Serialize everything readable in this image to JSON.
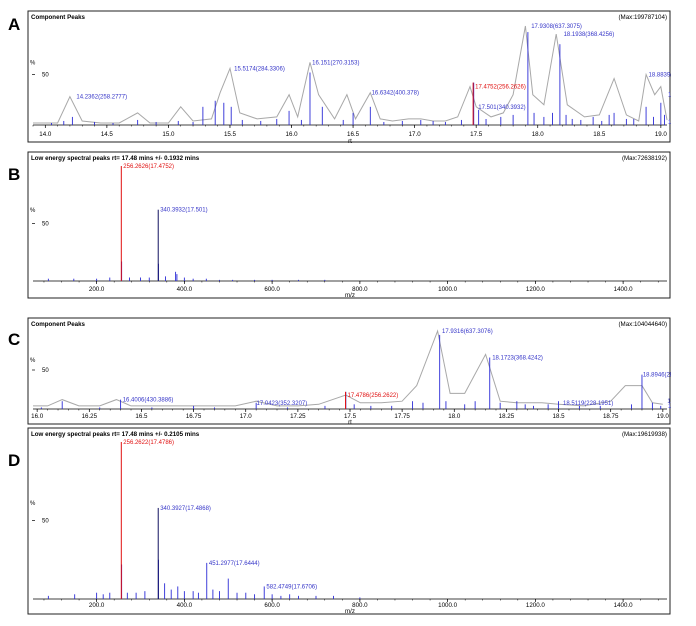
{
  "chart_data": [
    {
      "type": "line",
      "letter": "A",
      "title": "Component Peaks",
      "max_label": "(Max:199787104)",
      "ylabel": "%",
      "ytick": "50",
      "xlabel": "rt",
      "xlim": [
        13.9,
        19.05
      ],
      "xticks": [
        {
          "v": 14.0,
          "l": "14.0"
        },
        {
          "v": 14.5,
          "l": "14.5"
        },
        {
          "v": 15.0,
          "l": "15.0"
        },
        {
          "v": 15.5,
          "l": "15.5"
        },
        {
          "v": 16.0,
          "l": "16.0"
        },
        {
          "v": 16.5,
          "l": "16.5"
        },
        {
          "v": 17.0,
          "l": "17.0"
        },
        {
          "v": 17.5,
          "l": "17.5"
        },
        {
          "v": 18.0,
          "l": "18.0"
        },
        {
          "v": 18.5,
          "l": "18.5"
        },
        {
          "v": 19.0,
          "l": "19.0"
        }
      ],
      "envelope": [
        [
          13.9,
          2
        ],
        [
          14.1,
          2
        ],
        [
          14.2,
          28
        ],
        [
          14.3,
          4
        ],
        [
          14.45,
          2
        ],
        [
          14.6,
          2
        ],
        [
          14.75,
          12
        ],
        [
          14.85,
          2
        ],
        [
          15.0,
          2
        ],
        [
          15.1,
          18
        ],
        [
          15.2,
          4
        ],
        [
          15.35,
          6
        ],
        [
          15.42,
          32
        ],
        [
          15.5,
          56
        ],
        [
          15.58,
          12
        ],
        [
          15.72,
          6
        ],
        [
          15.88,
          8
        ],
        [
          15.98,
          30
        ],
        [
          16.05,
          8
        ],
        [
          16.15,
          62
        ],
        [
          16.22,
          30
        ],
        [
          16.35,
          6
        ],
        [
          16.45,
          30
        ],
        [
          16.52,
          6
        ],
        [
          16.64,
          32
        ],
        [
          16.72,
          6
        ],
        [
          16.82,
          4
        ],
        [
          16.95,
          6
        ],
        [
          17.05,
          6
        ],
        [
          17.15,
          4
        ],
        [
          17.25,
          4
        ],
        [
          17.35,
          8
        ],
        [
          17.45,
          38
        ],
        [
          17.5,
          18
        ],
        [
          17.62,
          8
        ],
        [
          17.72,
          12
        ],
        [
          17.8,
          30
        ],
        [
          17.9,
          98
        ],
        [
          17.96,
          30
        ],
        [
          18.05,
          20
        ],
        [
          18.15,
          90
        ],
        [
          18.24,
          20
        ],
        [
          18.38,
          8
        ],
        [
          18.5,
          10
        ],
        [
          18.62,
          46
        ],
        [
          18.72,
          10
        ],
        [
          18.82,
          4
        ],
        [
          18.88,
          50
        ],
        [
          18.95,
          30
        ],
        [
          19.0,
          38
        ],
        [
          19.05,
          5
        ]
      ],
      "sticks": [
        [
          14.05,
          2
        ],
        [
          14.15,
          4
        ],
        [
          14.22,
          8
        ],
        [
          14.4,
          3
        ],
        [
          14.55,
          2
        ],
        [
          14.75,
          5
        ],
        [
          14.9,
          3
        ],
        [
          15.08,
          4
        ],
        [
          15.2,
          3
        ],
        [
          15.28,
          18
        ],
        [
          15.38,
          24
        ],
        [
          15.45,
          22
        ],
        [
          15.51,
          18
        ],
        [
          15.6,
          5
        ],
        [
          15.75,
          4
        ],
        [
          15.88,
          6
        ],
        [
          15.98,
          14
        ],
        [
          16.08,
          5
        ],
        [
          16.15,
          52
        ],
        [
          16.25,
          18
        ],
        [
          16.42,
          5
        ],
        [
          16.5,
          12
        ],
        [
          16.64,
          18
        ],
        [
          16.75,
          3
        ],
        [
          16.9,
          4
        ],
        [
          17.05,
          5
        ],
        [
          17.15,
          4
        ],
        [
          17.25,
          3
        ],
        [
          17.38,
          5
        ],
        [
          17.48,
          42
        ],
        [
          17.52,
          15
        ],
        [
          17.58,
          6
        ],
        [
          17.7,
          8
        ],
        [
          17.8,
          10
        ],
        [
          17.92,
          92
        ],
        [
          17.97,
          12
        ],
        [
          18.05,
          8
        ],
        [
          18.12,
          12
        ],
        [
          18.18,
          80
        ],
        [
          18.23,
          10
        ],
        [
          18.28,
          6
        ],
        [
          18.35,
          5
        ],
        [
          18.45,
          8
        ],
        [
          18.52,
          4
        ],
        [
          18.58,
          10
        ],
        [
          18.62,
          12
        ],
        [
          18.72,
          6
        ],
        [
          18.78,
          6
        ],
        [
          18.88,
          18
        ],
        [
          18.94,
          8
        ],
        [
          19.0,
          22
        ],
        [
          19.03,
          10
        ]
      ],
      "highlights": [
        {
          "x": 17.4752,
          "y": 42
        }
      ],
      "labels": [
        {
          "x": 14.2362,
          "y": 28,
          "text": "14.2362(258.2777)",
          "color": "#3535c8"
        },
        {
          "x": 15.5174,
          "y": 56,
          "text": "15.5174(284.3306)",
          "color": "#3535c8"
        },
        {
          "x": 16.151,
          "y": 62,
          "text": "16.151(270.3153)",
          "color": "#3535c8"
        },
        {
          "x": 16.6342,
          "y": 32,
          "text": "16.6342(400.378)",
          "color": "#3535c8"
        },
        {
          "x": 17.4752,
          "y": 38,
          "text": "17.4752(256.2626)",
          "color": "#e01010"
        },
        {
          "x": 17.501,
          "y": 18,
          "text": "17.501(340.3932)",
          "color": "#3535c8"
        },
        {
          "x": 17.9308,
          "y": 98,
          "text": "17.9308(637.3075)",
          "color": "#3535c8"
        },
        {
          "x": 18.1938,
          "y": 90,
          "text": "18.1938(368.4256)",
          "color": "#3535c8"
        },
        {
          "x": 18.8839,
          "y": 50,
          "text": "18.8839(294.29",
          "color": "#3535c8"
        },
        {
          "x": 19.0539,
          "y": 30,
          "text": "19.0539",
          "color": "#3535c8"
        },
        {
          "x": 19.0596,
          "y": 2,
          "text": "19.0596",
          "color": "#3535c8"
        }
      ]
    },
    {
      "type": "bar",
      "letter": "B",
      "title": "Low energy spectral peaks rt= 17.48 mins +/- 0.1932 mins",
      "max_label": "(Max:72638192)",
      "ylabel": "%",
      "ytick": "50",
      "xlabel": "m/z",
      "xlim": [
        55,
        1500
      ],
      "xticks": [
        {
          "v": 200,
          "l": "200.0"
        },
        {
          "v": 400,
          "l": "400.0"
        },
        {
          "v": 600,
          "l": "600.0"
        },
        {
          "v": 800,
          "l": "800.0"
        },
        {
          "v": 1000,
          "l": "1000.0"
        },
        {
          "v": 1200,
          "l": "1200.0"
        },
        {
          "v": 1400,
          "l": "1400.0"
        }
      ],
      "sticks": [
        [
          90,
          2
        ],
        [
          148,
          2
        ],
        [
          200,
          2
        ],
        [
          230,
          3
        ],
        [
          257,
          17
        ],
        [
          275,
          3
        ],
        [
          300,
          3
        ],
        [
          320,
          3
        ],
        [
          341,
          15
        ],
        [
          357,
          4
        ],
        [
          380,
          8
        ],
        [
          383,
          6
        ],
        [
          400,
          3
        ],
        [
          420,
          2
        ],
        [
          450,
          2
        ],
        [
          480,
          1
        ],
        [
          510,
          1
        ],
        [
          560,
          1
        ],
        [
          600,
          1
        ],
        [
          660,
          1
        ],
        [
          720,
          1
        ]
      ],
      "highlights": [
        {
          "x": 256.2626,
          "y": 100
        }
      ],
      "peaks": [
        {
          "x": 340.3932,
          "y": 62
        }
      ],
      "labels": [
        {
          "x": 256.2626,
          "y": 100,
          "text": "256.2626(17.4752)",
          "color": "#e01010"
        },
        {
          "x": 340.3932,
          "y": 62,
          "text": "340.3932(17.501)",
          "color": "#3535c8"
        }
      ]
    },
    {
      "type": "line",
      "letter": "C",
      "title": "Component Peaks",
      "max_label": "(Max:104044640)",
      "ylabel": "%",
      "ytick": "50",
      "xlabel": "rt",
      "xlim": [
        15.98,
        19.02
      ],
      "xticks": [
        {
          "v": 16.0,
          "l": "16.0"
        },
        {
          "v": 16.25,
          "l": "16.25"
        },
        {
          "v": 16.5,
          "l": "16.5"
        },
        {
          "v": 16.75,
          "l": "16.75"
        },
        {
          "v": 17.0,
          "l": "17.0"
        },
        {
          "v": 17.25,
          "l": "17.25"
        },
        {
          "v": 17.5,
          "l": "17.5"
        },
        {
          "v": 17.75,
          "l": "17.75"
        },
        {
          "v": 18.0,
          "l": "18.0"
        },
        {
          "v": 18.25,
          "l": "18.25"
        },
        {
          "v": 18.5,
          "l": "18.5"
        },
        {
          "v": 18.75,
          "l": "18.75"
        },
        {
          "v": 19.0,
          "l": "19.0"
        }
      ],
      "envelope": [
        [
          15.98,
          4
        ],
        [
          16.05,
          4
        ],
        [
          16.12,
          12
        ],
        [
          16.2,
          4
        ],
        [
          16.3,
          4
        ],
        [
          16.38,
          12
        ],
        [
          16.45,
          4
        ],
        [
          16.55,
          4
        ],
        [
          16.65,
          4
        ],
        [
          16.75,
          4
        ],
        [
          16.85,
          4
        ],
        [
          16.95,
          4
        ],
        [
          17.05,
          10
        ],
        [
          17.15,
          4
        ],
        [
          17.25,
          4
        ],
        [
          17.35,
          6
        ],
        [
          17.48,
          18
        ],
        [
          17.55,
          8
        ],
        [
          17.65,
          8
        ],
        [
          17.75,
          10
        ],
        [
          17.82,
          30
        ],
        [
          17.92,
          100
        ],
        [
          17.98,
          20
        ],
        [
          18.05,
          20
        ],
        [
          18.15,
          70
        ],
        [
          18.22,
          10
        ],
        [
          18.3,
          8
        ],
        [
          18.42,
          8
        ],
        [
          18.5,
          6
        ],
        [
          18.62,
          4
        ],
        [
          18.75,
          10
        ],
        [
          18.82,
          30
        ],
        [
          18.9,
          30
        ],
        [
          18.95,
          8
        ],
        [
          19.0,
          6
        ]
      ],
      "sticks": [
        [
          16.02,
          2
        ],
        [
          16.12,
          10
        ],
        [
          16.3,
          2
        ],
        [
          16.4,
          12
        ],
        [
          16.55,
          2
        ],
        [
          16.75,
          4
        ],
        [
          16.85,
          2
        ],
        [
          17.05,
          8
        ],
        [
          17.2,
          2
        ],
        [
          17.38,
          4
        ],
        [
          17.48,
          22
        ],
        [
          17.52,
          6
        ],
        [
          17.6,
          4
        ],
        [
          17.7,
          4
        ],
        [
          17.8,
          10
        ],
        [
          17.85,
          8
        ],
        [
          17.93,
          95
        ],
        [
          17.96,
          10
        ],
        [
          18.05,
          6
        ],
        [
          18.1,
          10
        ],
        [
          18.17,
          66
        ],
        [
          18.22,
          8
        ],
        [
          18.3,
          10
        ],
        [
          18.34,
          6
        ],
        [
          18.38,
          4
        ],
        [
          18.45,
          6
        ],
        [
          18.5,
          10
        ],
        [
          18.6,
          4
        ],
        [
          18.7,
          4
        ],
        [
          18.85,
          6
        ],
        [
          18.9,
          44
        ],
        [
          18.95,
          8
        ],
        [
          18.99,
          4
        ]
      ],
      "highlights": [
        {
          "x": 17.4786,
          "y": 22
        }
      ],
      "labels": [
        {
          "x": 16.4006,
          "y": 12,
          "text": "16.4006(430.3886)",
          "color": "#3535c8"
        },
        {
          "x": 17.0423,
          "y": 8,
          "text": "17.0423(352.3207)",
          "color": "#3535c8"
        },
        {
          "x": 17.4786,
          "y": 18,
          "text": "17.4786(256.2622)",
          "color": "#e01010"
        },
        {
          "x": 17.9316,
          "y": 100,
          "text": "17.9316(637.3076)",
          "color": "#3535c8"
        },
        {
          "x": 18.1723,
          "y": 66,
          "text": "18.1723(368.4242)",
          "color": "#3535c8"
        },
        {
          "x": 18.5119,
          "y": 8,
          "text": "18.5119(228.1951)",
          "color": "#3535c8"
        },
        {
          "x": 18.8946,
          "y": 44,
          "text": "18.8946(284.2938)",
          "color": "#3535c8"
        },
        {
          "x": 19.0125,
          "y": 10,
          "text": "19.0125(310.3",
          "color": "#3535c8"
        },
        {
          "x": 19.0994,
          "y": 2,
          "text": "19.0994",
          "color": "#3535c8"
        }
      ]
    },
    {
      "type": "bar",
      "letter": "D",
      "title": "Low energy spectral peaks rt= 17.48 mins +/- 0.2105 mins",
      "max_label": "(Max:19619938)",
      "ylabel": "%",
      "ytick": "50",
      "xlabel": "m/z",
      "xlim": [
        55,
        1500
      ],
      "xticks": [
        {
          "v": 200,
          "l": "200.0"
        },
        {
          "v": 400,
          "l": "400.0"
        },
        {
          "v": 600,
          "l": "600.0"
        },
        {
          "v": 800,
          "l": "800.0"
        },
        {
          "v": 1000,
          "l": "1000.0"
        },
        {
          "v": 1200,
          "l": "1200.0"
        },
        {
          "v": 1400,
          "l": "1400.0"
        }
      ],
      "sticks": [
        [
          90,
          2
        ],
        [
          150,
          3
        ],
        [
          200,
          4
        ],
        [
          215,
          3
        ],
        [
          230,
          4
        ],
        [
          257,
          22
        ],
        [
          270,
          4
        ],
        [
          290,
          4
        ],
        [
          310,
          5
        ],
        [
          341,
          25
        ],
        [
          355,
          10
        ],
        [
          370,
          6
        ],
        [
          385,
          8
        ],
        [
          400,
          5
        ],
        [
          420,
          5
        ],
        [
          432,
          4
        ],
        [
          451,
          23
        ],
        [
          465,
          6
        ],
        [
          480,
          5
        ],
        [
          500,
          13
        ],
        [
          520,
          4
        ],
        [
          540,
          4
        ],
        [
          560,
          3
        ],
        [
          582,
          8
        ],
        [
          600,
          3
        ],
        [
          620,
          2
        ],
        [
          640,
          3
        ],
        [
          660,
          2
        ],
        [
          700,
          2
        ],
        [
          740,
          2
        ],
        [
          800,
          1
        ]
      ],
      "highlights": [
        {
          "x": 256.2622,
          "y": 100
        }
      ],
      "peaks": [
        {
          "x": 340.3927,
          "y": 58
        }
      ],
      "labels": [
        {
          "x": 256.2622,
          "y": 100,
          "text": "256.2622(17.4786)",
          "color": "#e01010"
        },
        {
          "x": 340.3927,
          "y": 58,
          "text": "340.3927(17.4868)",
          "color": "#3535c8"
        },
        {
          "x": 451.2977,
          "y": 23,
          "text": "451.2977(17.6444)",
          "color": "#3535c8"
        },
        {
          "x": 582.4749,
          "y": 8,
          "text": "582.4749(17.6706)",
          "color": "#3535c8"
        }
      ]
    }
  ]
}
